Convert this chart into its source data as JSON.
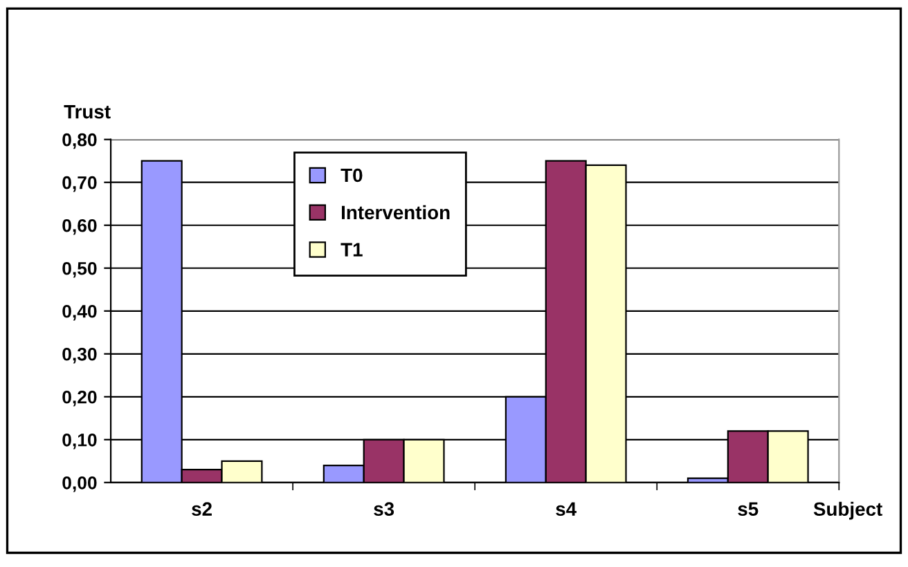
{
  "chart_data": {
    "type": "bar",
    "ylabel": "Trust",
    "xlabel": "Subject",
    "categories": [
      "s2",
      "s3",
      "s4",
      "s5"
    ],
    "series": [
      {
        "name": "T0",
        "color": "#9999ff",
        "values": [
          0.75,
          0.04,
          0.2,
          0.01
        ]
      },
      {
        "name": "Intervention",
        "color": "#993366",
        "values": [
          0.03,
          0.1,
          0.75,
          0.12
        ]
      },
      {
        "name": "T1",
        "color": "#ffffcc",
        "values": [
          0.05,
          0.1,
          0.74,
          0.12
        ]
      }
    ],
    "ylim": [
      0,
      0.8
    ],
    "yticks": [
      {
        "value": 0,
        "label": "0,00"
      },
      {
        "value": 0.1,
        "label": "0,10"
      },
      {
        "value": 0.2,
        "label": "0,20"
      },
      {
        "value": 0.3,
        "label": "0,30"
      },
      {
        "value": 0.4,
        "label": "0,40"
      },
      {
        "value": 0.5,
        "label": "0,50"
      },
      {
        "value": 0.6,
        "label": "0,60"
      },
      {
        "value": 0.7,
        "label": "0,70"
      },
      {
        "value": 0.8,
        "label": "0,80"
      }
    ],
    "grid": "y",
    "legend": "top"
  }
}
